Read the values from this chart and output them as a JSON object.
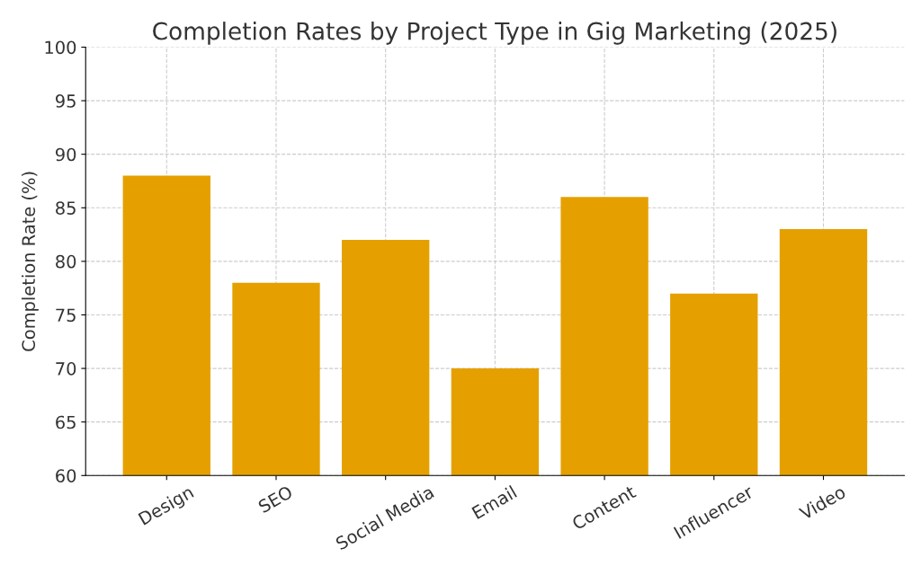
{
  "chart_data": {
    "type": "bar",
    "title": "Completion Rates by Project Type in Gig Marketing (2025)",
    "ylabel": "Completion Rate (%)",
    "categories": [
      "Design",
      "SEO",
      "Social Media",
      "Email",
      "Content",
      "Influencer",
      "Video"
    ],
    "values": [
      88,
      78,
      82,
      70,
      86,
      77,
      83
    ],
    "color": "#e5a000",
    "ylim": [
      60,
      100
    ],
    "yticks": [
      60,
      65,
      70,
      75,
      80,
      85,
      90,
      95,
      100
    ],
    "grid": true
  }
}
